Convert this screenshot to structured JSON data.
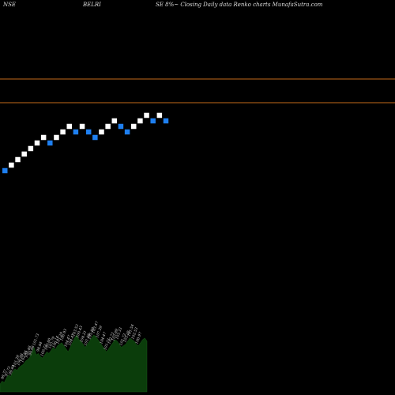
{
  "header": {
    "exchange": "NSE",
    "symbol": "BELRI",
    "description": "SE 8%~  Closing Daily data  Renko  charts MunafaSutra.com"
  },
  "colors": {
    "background": "#000000",
    "up_brick": "#ffffff",
    "down_brick": "#1e7ff0",
    "reference_line": "#c46a1a",
    "volume_fill": "#0b3d0b",
    "label_text": "#dddddd"
  },
  "chart_data": {
    "type": "renko",
    "price_ylim": [
      0,
      100
    ],
    "reference_lines": [
      80.0,
      74.0
    ],
    "bricks": [
      {
        "level": 56.8,
        "dir": "down"
      },
      {
        "level": 58.2,
        "dir": "up"
      },
      {
        "level": 59.6,
        "dir": "up"
      },
      {
        "level": 61.0,
        "dir": "up"
      },
      {
        "level": 62.4,
        "dir": "up"
      },
      {
        "level": 63.8,
        "dir": "up"
      },
      {
        "level": 65.2,
        "dir": "up"
      },
      {
        "level": 63.8,
        "dir": "down"
      },
      {
        "level": 65.2,
        "dir": "up"
      },
      {
        "level": 66.6,
        "dir": "up"
      },
      {
        "level": 68.0,
        "dir": "up"
      },
      {
        "level": 66.6,
        "dir": "down"
      },
      {
        "level": 68.0,
        "dir": "up"
      },
      {
        "level": 66.6,
        "dir": "down"
      },
      {
        "level": 65.2,
        "dir": "down"
      },
      {
        "level": 66.6,
        "dir": "up"
      },
      {
        "level": 68.0,
        "dir": "up"
      },
      {
        "level": 69.4,
        "dir": "up"
      },
      {
        "level": 68.0,
        "dir": "down"
      },
      {
        "level": 66.6,
        "dir": "down"
      },
      {
        "level": 68.0,
        "dir": "up"
      },
      {
        "level": 69.4,
        "dir": "up"
      },
      {
        "level": 70.8,
        "dir": "up"
      },
      {
        "level": 69.4,
        "dir": "down"
      },
      {
        "level": 70.8,
        "dir": "up"
      },
      {
        "level": 69.4,
        "dir": "down"
      }
    ],
    "volume": [
      10,
      14,
      12,
      18,
      22,
      20,
      26,
      30,
      28,
      32,
      34,
      36,
      40,
      42,
      45,
      52,
      58,
      48,
      50,
      46,
      44,
      48,
      52,
      50,
      54,
      58,
      55,
      60,
      62,
      64,
      60,
      56,
      52,
      58,
      64,
      70,
      74,
      68,
      66,
      62,
      58,
      62,
      66,
      70,
      74,
      72,
      68,
      64,
      60,
      56,
      52,
      56,
      60,
      64,
      68,
      66,
      62,
      58,
      60,
      62,
      66,
      70,
      68,
      66,
      62,
      60,
      64,
      68,
      70,
      66
    ],
    "volume_labels": [
      "98.77",
      "97.73",
      "99.64",
      "101.39",
      "100.98",
      "102.84",
      "100.48",
      "99.96",
      "101.73",
      "98.84",
      "100.72",
      "100.80",
      "103.79",
      "106.14",
      "101.29",
      "106.93",
      "104.47",
      "104.47",
      "103.53",
      "100.43",
      "104.21",
      "101.08",
      "105.89",
      "103.47",
      "107.29",
      "104.47",
      "101.71",
      "102.71",
      "103.69",
      "103.33",
      "101.72",
      "103.35",
      "101.54",
      "102.53",
      "100.97"
    ]
  }
}
